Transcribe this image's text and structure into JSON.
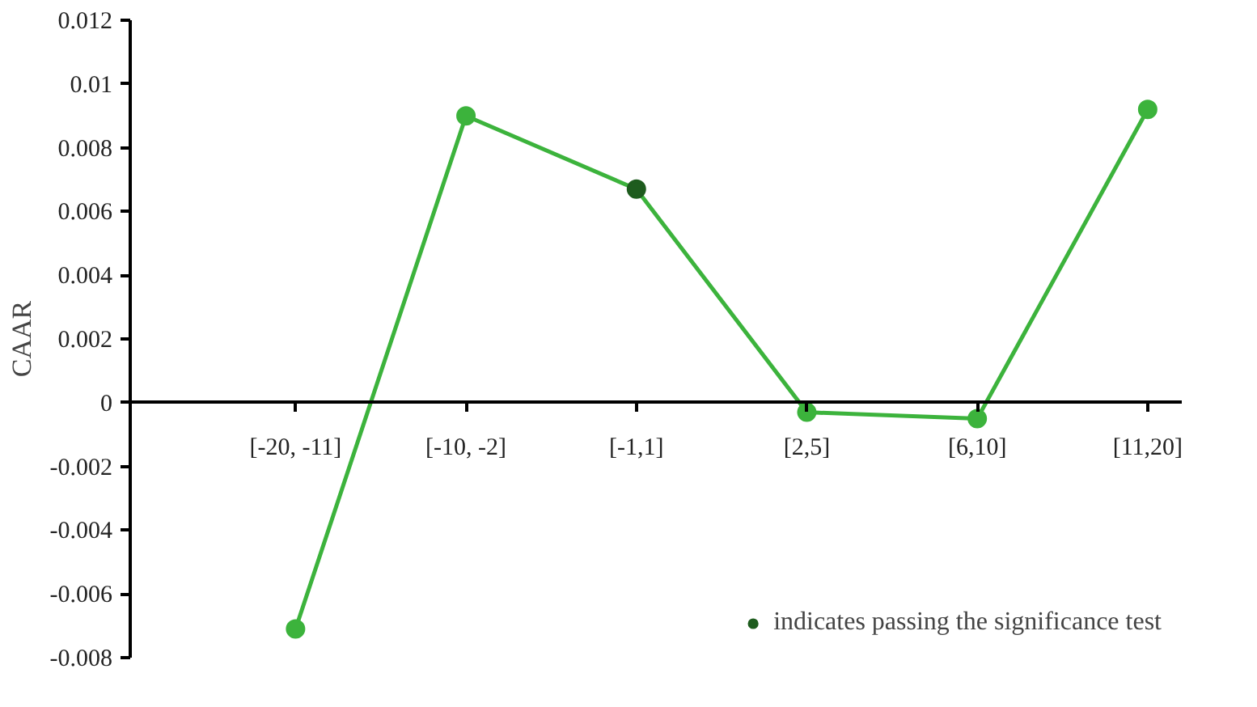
{
  "chart_data": {
    "type": "line",
    "ylabel": "CAAR",
    "categories": [
      "[-20, -11]",
      "[-10, -2]",
      "[-1,1]",
      "[2,5]",
      "[6,10]",
      "[11,20]"
    ],
    "series": [
      {
        "color": "#3cb33c",
        "colors": [
          "#3cb33c",
          "#3cb33c",
          "#1e5c1e",
          "#3cb33c",
          "#3cb33c",
          "#3cb33c"
        ],
        "values": [
          -0.0071,
          0.009,
          0.0067,
          -0.0003,
          -0.0005,
          0.0092
        ]
      },
      {
        "type": "scatter",
        "name": "indicates passing the significance test",
        "color": "#1e5c1e",
        "values": [
          null,
          null,
          0.0067,
          null,
          null,
          null
        ]
      }
    ],
    "ylim": [
      -0.008,
      0.012
    ],
    "yticks": [
      -0.008,
      -0.006,
      -0.004,
      -0.002,
      0,
      0.002,
      0.004,
      0.006,
      0.008,
      0.01,
      0.012
    ],
    "marker": "circle",
    "grid": false,
    "legend": "bottom right"
  }
}
